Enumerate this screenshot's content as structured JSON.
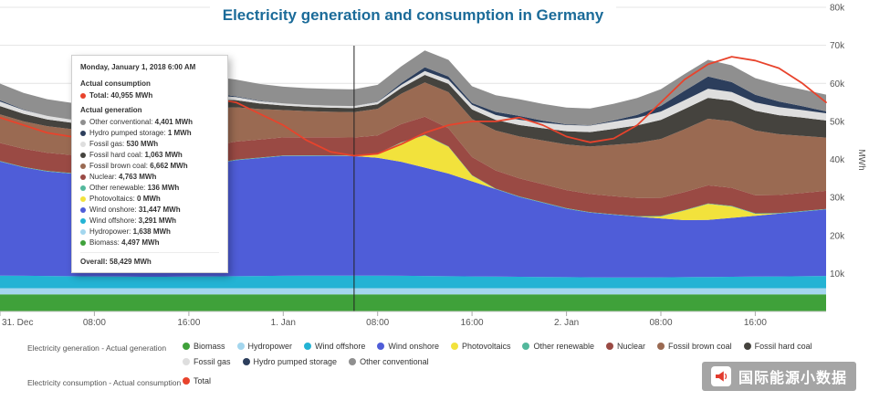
{
  "title": "Electricity generation and consumption in Germany",
  "y_axis": {
    "unit": "MWh"
  },
  "tooltip": {
    "date": "Monday, January 1, 2018 6:00 AM",
    "consumption_header": "Actual consumption",
    "consumption_total": {
      "label": "Total",
      "value": "40,955 MWh",
      "color": "#e8432c"
    },
    "generation_header": "Actual generation",
    "items": [
      {
        "label": "Other conventional",
        "value": "4,401 MWh",
        "color": "#8f8f8f"
      },
      {
        "label": "Hydro pumped storage",
        "value": "1 MWh",
        "color": "#2c3e5c"
      },
      {
        "label": "Fossil gas",
        "value": "530 MWh",
        "color": "#dedede"
      },
      {
        "label": "Fossil hard coal",
        "value": "1,063 MWh",
        "color": "#45433e"
      },
      {
        "label": "Fossil brown coal",
        "value": "6,662 MWh",
        "color": "#9a6a52"
      },
      {
        "label": "Nuclear",
        "value": "4,763 MWh",
        "color": "#9a4a44"
      },
      {
        "label": "Other renewable",
        "value": "136 MWh",
        "color": "#53b89c"
      },
      {
        "label": "Photovoltaics",
        "value": "0 MWh",
        "color": "#f2e23c"
      },
      {
        "label": "Wind onshore",
        "value": "31,447 MWh",
        "color": "#4f5dd8"
      },
      {
        "label": "Wind offshore",
        "value": "3,291 MWh",
        "color": "#23b3d4"
      },
      {
        "label": "Hydropower",
        "value": "1,638 MWh",
        "color": "#a3d6ee"
      },
      {
        "label": "Biomass",
        "value": "4,497 MWh",
        "color": "#3fa13a"
      }
    ],
    "overall": {
      "label": "Overall",
      "value": "58,429 MWh"
    }
  },
  "legend": {
    "generation_label": "Electricity generation - Actual generation",
    "consumption_label": "Electricity consumption - Actual consumption",
    "generation_items": [
      {
        "label": "Biomass",
        "color": "#3fa13a"
      },
      {
        "label": "Hydropower",
        "color": "#a3d6ee"
      },
      {
        "label": "Wind offshore",
        "color": "#23b3d4"
      },
      {
        "label": "Wind onshore",
        "color": "#4f5dd8"
      },
      {
        "label": "Photovoltaics",
        "color": "#f2e23c"
      },
      {
        "label": "Other renewable",
        "color": "#53b89c"
      },
      {
        "label": "Nuclear",
        "color": "#9a4a44"
      },
      {
        "label": "Fossil brown coal",
        "color": "#9a6a52"
      },
      {
        "label": "Fossil hard coal",
        "color": "#45433e"
      },
      {
        "label": "Fossil gas",
        "color": "#dedede"
      },
      {
        "label": "Hydro pumped storage",
        "color": "#2c3e5c"
      },
      {
        "label": "Other conventional",
        "color": "#8f8f8f"
      }
    ],
    "consumption_items": [
      {
        "label": "Total",
        "color": "#e8432c"
      }
    ]
  },
  "watermark": {
    "text": "国际能源小数据"
  },
  "chart_data": {
    "type": "area",
    "stacked": true,
    "title": "Electricity generation and consumption in Germany",
    "ylabel": "MWh",
    "ylim": [
      0,
      80000
    ],
    "grid": true,
    "hover_hour": 30,
    "hover_label": "Monday, January 1, 2018 6:00 AM",
    "x_hours": [
      0,
      2,
      4,
      6,
      8,
      10,
      12,
      14,
      16,
      18,
      20,
      22,
      24,
      26,
      28,
      30,
      32,
      34,
      36,
      38,
      40,
      42,
      44,
      46,
      48,
      50,
      52,
      54,
      56,
      58,
      60,
      62,
      64,
      66,
      68,
      70
    ],
    "x_tick_hours": [
      0,
      8,
      16,
      24,
      32,
      40,
      48,
      56,
      64
    ],
    "x_tick_labels": [
      "31. Dec",
      "08:00",
      "16:00",
      "1. Jan",
      "08:00",
      "16:00",
      "2. Jan",
      "08:00",
      "16:00"
    ],
    "y_tick_labels": [
      "10k",
      "20k",
      "30k",
      "40k",
      "50k",
      "60k",
      "70k",
      "80k"
    ],
    "series": [
      {
        "name": "Biomass",
        "color": "#3fa13a",
        "values": 4497
      },
      {
        "name": "Hydropower",
        "color": "#a3d6ee",
        "values": 1638
      },
      {
        "name": "Wind offshore",
        "color": "#23b3d4",
        "values": [
          3300,
          3250,
          3200,
          3150,
          3100,
          3050,
          3000,
          3000,
          3050,
          3100,
          3150,
          3200,
          3250,
          3280,
          3290,
          3291,
          3280,
          3250,
          3200,
          3150,
          3100,
          3050,
          3000,
          2950,
          2900,
          2850,
          2800,
          2800,
          2850,
          2900,
          2950,
          3000,
          3050,
          3100,
          3150,
          3200
        ]
      },
      {
        "name": "Wind onshore",
        "color": "#4f5dd8",
        "values": [
          30000,
          28500,
          27500,
          27000,
          27500,
          28000,
          28500,
          28000,
          28500,
          29500,
          30500,
          31000,
          31500,
          31500,
          31500,
          31447,
          31000,
          30000,
          28500,
          27000,
          25000,
          23000,
          21000,
          19500,
          18000,
          17000,
          16500,
          16000,
          15500,
          15000,
          15000,
          15500,
          16000,
          16500,
          17000,
          17500
        ]
      },
      {
        "name": "Photovoltaics",
        "color": "#f2e23c",
        "values": [
          0,
          0,
          0,
          0,
          300,
          1500,
          2200,
          1200,
          200,
          0,
          0,
          0,
          0,
          0,
          0,
          0,
          1000,
          5000,
          8500,
          7000,
          1500,
          0,
          0,
          0,
          0,
          0,
          0,
          0,
          500,
          2500,
          4200,
          3000,
          500,
          0,
          0,
          0
        ]
      },
      {
        "name": "Other renewable",
        "color": "#53b89c",
        "values": 136
      },
      {
        "name": "Nuclear",
        "color": "#9a4a44",
        "values": 4763
      },
      {
        "name": "Fossil brown coal",
        "color": "#9a6a52",
        "values": [
          7500,
          7200,
          7000,
          6800,
          7200,
          8000,
          9000,
          9800,
          10200,
          9800,
          9000,
          8000,
          7200,
          6900,
          6700,
          6662,
          7000,
          8000,
          9000,
          9500,
          10000,
          10500,
          11000,
          11500,
          12000,
          12500,
          13500,
          14500,
          15500,
          16500,
          17500,
          17500,
          17000,
          16000,
          15000,
          14000
        ]
      },
      {
        "name": "Fossil hard coal",
        "color": "#45433e",
        "values": [
          2200,
          2000,
          1800,
          1700,
          1900,
          2300,
          2800,
          2900,
          2800,
          2400,
          1900,
          1500,
          1200,
          1100,
          1070,
          1063,
          1200,
          1500,
          2000,
          2200,
          2500,
          2800,
          3000,
          3200,
          3500,
          3800,
          4200,
          4600,
          5000,
          5300,
          5500,
          5400,
          5200,
          5000,
          4800,
          4500
        ]
      },
      {
        "name": "Fossil gas",
        "color": "#dedede",
        "values": [
          1200,
          1000,
          900,
          800,
          900,
          1000,
          1200,
          1200,
          1100,
          1000,
          800,
          600,
          550,
          535,
          530,
          530,
          600,
          800,
          1000,
          1100,
          1200,
          1300,
          1400,
          1500,
          1600,
          1700,
          1900,
          2000,
          2200,
          2300,
          2400,
          2300,
          2200,
          2100,
          2000,
          1900
        ]
      },
      {
        "name": "Hydro pumped storage",
        "color": "#2c3e5c",
        "values": [
          300,
          100,
          0,
          0,
          200,
          800,
          1500,
          1200,
          1000,
          500,
          200,
          100,
          0,
          0,
          0,
          1,
          100,
          500,
          1000,
          800,
          500,
          800,
          1000,
          500,
          200,
          100,
          300,
          800,
          1500,
          2500,
          3200,
          2600,
          2000,
          1500,
          1000,
          500
        ]
      },
      {
        "name": "Other conventional",
        "color": "#8f8f8f",
        "values": 4401
      }
    ],
    "consumption_line": {
      "name": "Total",
      "color": "#e8432c",
      "values": [
        51000,
        49000,
        47000,
        46000,
        47500,
        50500,
        53000,
        54500,
        55500,
        56000,
        55000,
        52000,
        49000,
        45000,
        42000,
        40955,
        41500,
        44000,
        47000,
        49000,
        50000,
        50000,
        51000,
        49000,
        46000,
        44500,
        45500,
        49000,
        55000,
        61000,
        65000,
        67000,
        66000,
        64000,
        60000,
        55000
      ]
    }
  }
}
